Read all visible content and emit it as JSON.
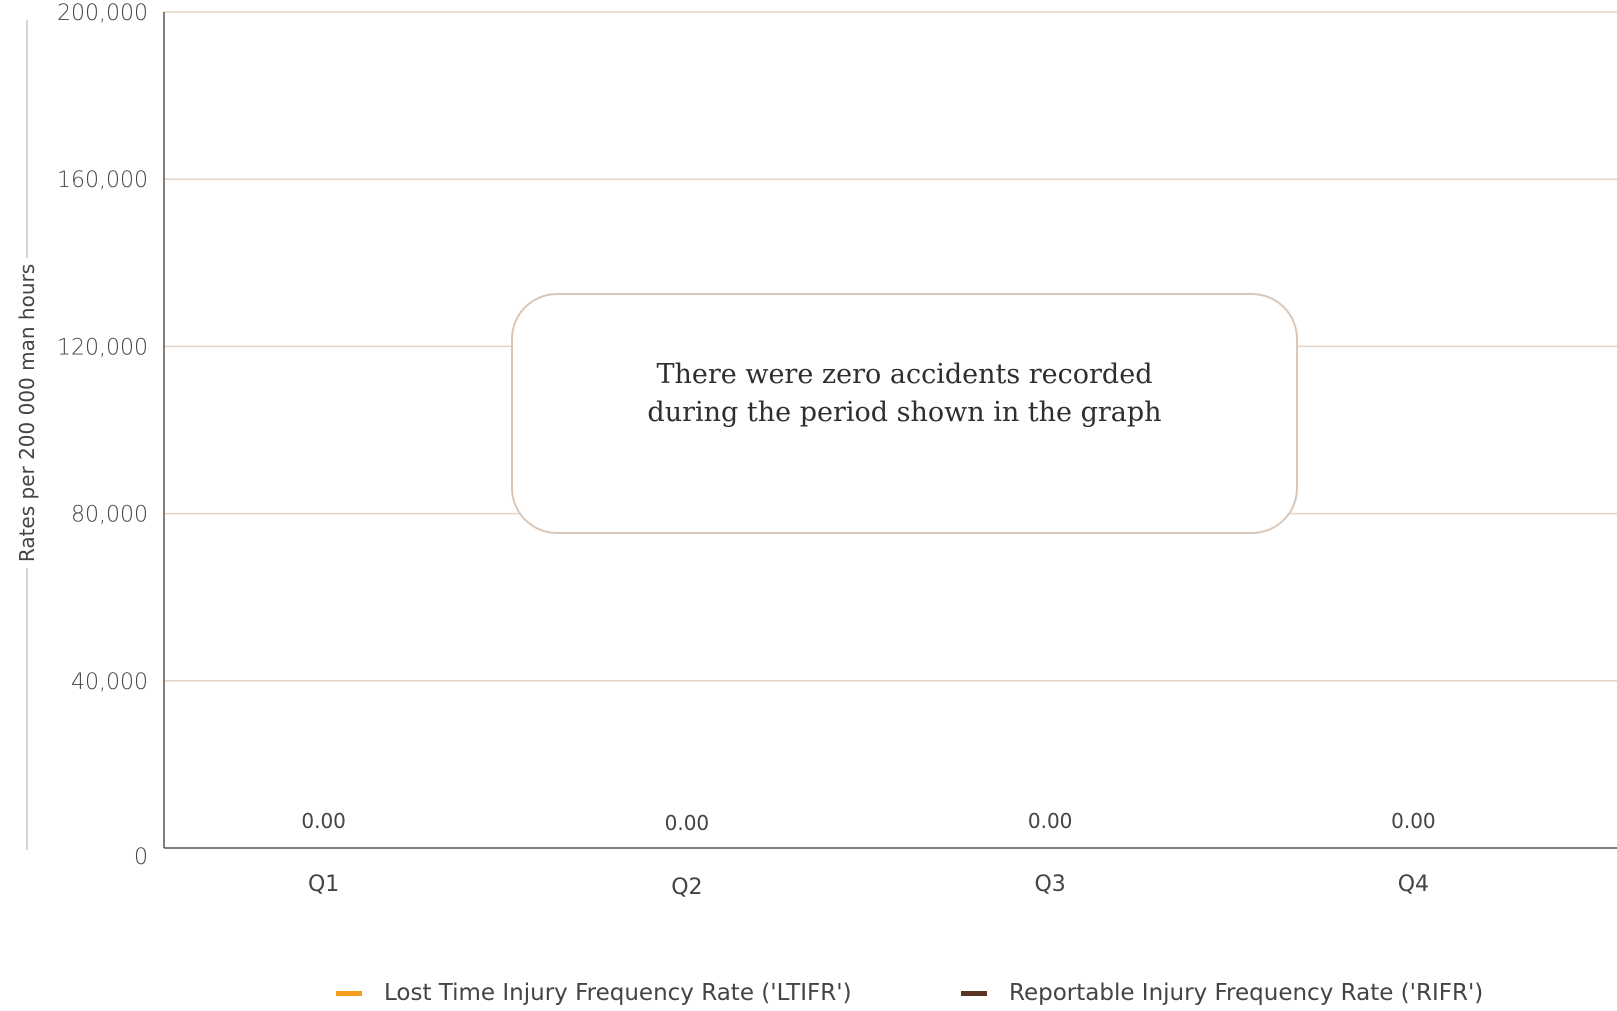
{
  "chart_data": {
    "type": "bar",
    "categories": [
      "Q1",
      "Q2",
      "Q3",
      "Q4"
    ],
    "series": [
      {
        "name": "Lost Time Injury Frequency Rate ('LTIFR')",
        "values": [
          0,
          0,
          0,
          0
        ],
        "color": "#f39c1e"
      },
      {
        "name": "Reportable Injury Frequency Rate ('RIFR')",
        "values": [
          0,
          0,
          0,
          0
        ],
        "color": "#5b3424"
      }
    ],
    "data_labels": [
      "0.00",
      "0.00",
      "0.00",
      "0.00"
    ],
    "ylabel": "Rates per 200 000 man hours",
    "ylim": [
      0,
      200000
    ],
    "yticks": [
      0,
      40000,
      80000,
      120000,
      160000,
      200000
    ],
    "ytick_labels": [
      "0",
      "40,000",
      "80,000",
      "120,000",
      "160,000",
      "200,000"
    ],
    "grid": true,
    "legend_position": "bottom",
    "annotation": "There were zero accidents recorded during the period shown in the graph",
    "colors": {
      "gridline": "#e2d3c6",
      "axis": "#555555",
      "callout_border": "#d9c7b9"
    }
  }
}
